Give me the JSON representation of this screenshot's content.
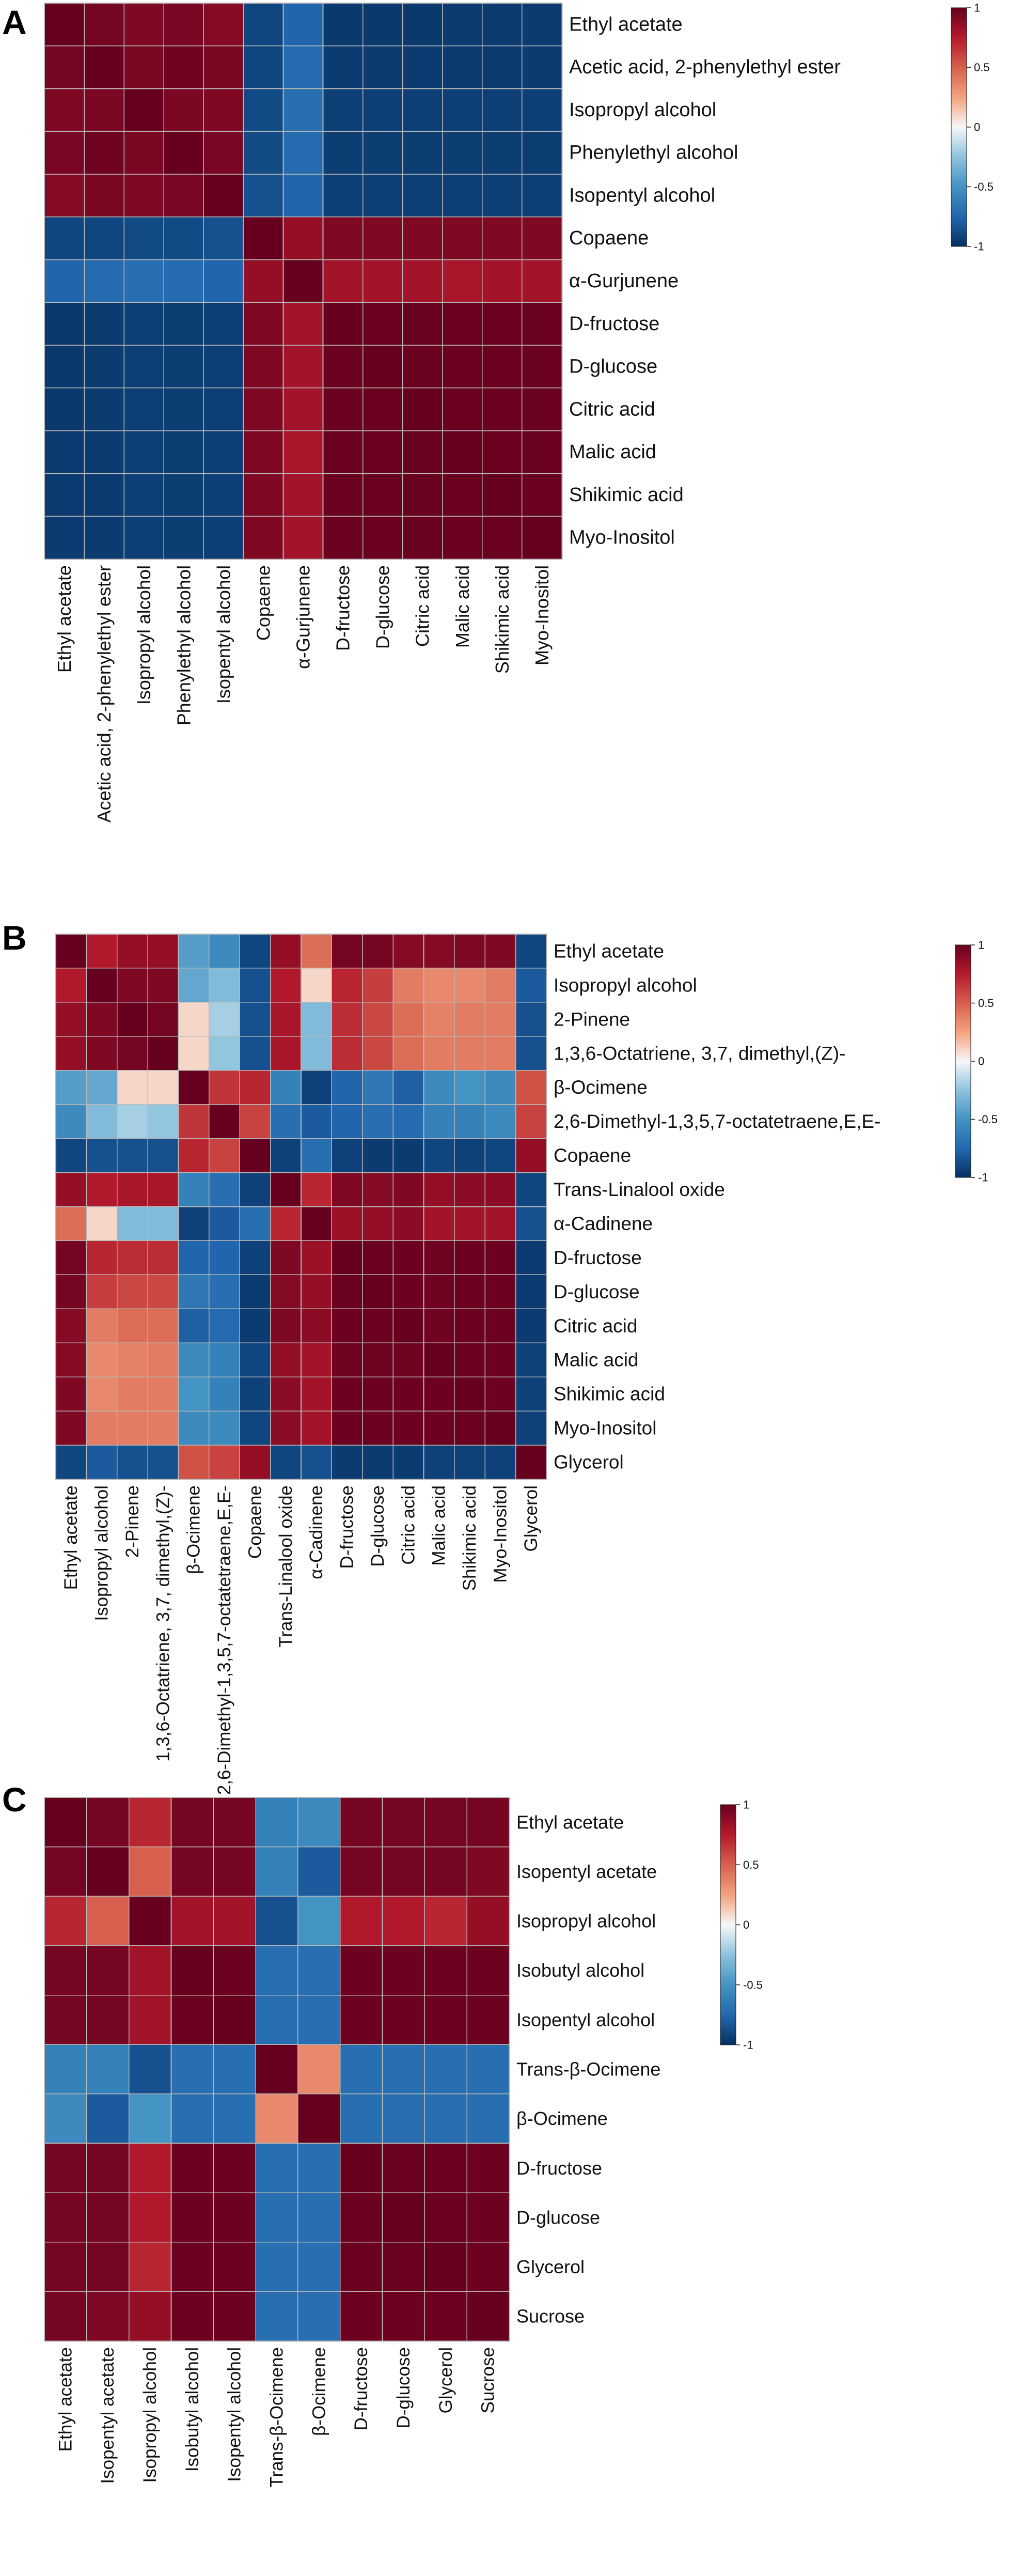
{
  "figure": {
    "colorscale": {
      "low": "#053061",
      "mid": "#f7f7f7",
      "high": "#67001f",
      "range": [
        -1,
        1
      ]
    }
  },
  "chart_data": [
    {
      "type": "heatmap",
      "panel_label": "A",
      "title": "",
      "labels": [
        "Ethyl acetate",
        "Acetic acid, 2-phenylethyl ester",
        "Isopropyl alcohol",
        "Phenylethyl alcohol",
        "Isopentyl alcohol",
        "Copaene",
        "α-Gurjunene",
        "D-fructose",
        "D-glucose",
        "Citric acid",
        "Malic acid",
        "Shikimic acid",
        "Myo-Inositol"
      ],
      "values": [
        [
          1.0,
          0.95,
          0.92,
          0.94,
          0.9,
          -0.9,
          -0.75,
          -0.96,
          -0.96,
          -0.96,
          -0.95,
          -0.95,
          -0.95
        ],
        [
          0.95,
          1.0,
          0.93,
          0.97,
          0.93,
          -0.9,
          -0.72,
          -0.95,
          -0.95,
          -0.95,
          -0.95,
          -0.95,
          -0.95
        ],
        [
          0.92,
          0.93,
          1.0,
          0.93,
          0.92,
          -0.88,
          -0.7,
          -0.93,
          -0.93,
          -0.93,
          -0.93,
          -0.93,
          -0.93
        ],
        [
          0.94,
          0.97,
          0.93,
          1.0,
          0.94,
          -0.88,
          -0.72,
          -0.94,
          -0.94,
          -0.94,
          -0.94,
          -0.94,
          -0.94
        ],
        [
          0.9,
          0.93,
          0.92,
          0.94,
          1.0,
          -0.85,
          -0.75,
          -0.93,
          -0.93,
          -0.93,
          -0.93,
          -0.93,
          -0.93
        ],
        [
          -0.9,
          -0.9,
          -0.88,
          -0.88,
          -0.85,
          1.0,
          0.85,
          0.92,
          0.92,
          0.92,
          0.92,
          0.92,
          0.92
        ],
        [
          -0.75,
          -0.72,
          -0.7,
          -0.72,
          -0.75,
          0.85,
          1.0,
          0.8,
          0.8,
          0.8,
          0.78,
          0.8,
          0.8
        ],
        [
          -0.96,
          -0.95,
          -0.93,
          -0.94,
          -0.93,
          0.92,
          0.8,
          1.0,
          0.99,
          0.99,
          0.99,
          0.99,
          0.99
        ],
        [
          -0.96,
          -0.95,
          -0.93,
          -0.94,
          -0.93,
          0.92,
          0.8,
          0.99,
          1.0,
          0.99,
          0.99,
          0.99,
          0.99
        ],
        [
          -0.96,
          -0.95,
          -0.93,
          -0.94,
          -0.93,
          0.92,
          0.8,
          0.99,
          0.99,
          1.0,
          0.99,
          0.99,
          0.99
        ],
        [
          -0.95,
          -0.95,
          -0.93,
          -0.94,
          -0.93,
          0.92,
          0.78,
          0.99,
          0.99,
          0.99,
          1.0,
          0.99,
          0.99
        ],
        [
          -0.95,
          -0.95,
          -0.93,
          -0.94,
          -0.93,
          0.92,
          0.8,
          0.99,
          0.99,
          0.99,
          0.99,
          1.0,
          0.99
        ],
        [
          -0.95,
          -0.95,
          -0.93,
          -0.94,
          -0.93,
          0.92,
          0.8,
          0.99,
          0.99,
          0.99,
          0.99,
          0.99,
          1.0
        ]
      ],
      "colorbar": {
        "ticks": [
          "1",
          "0.5",
          "0",
          "-0.5",
          "-1"
        ],
        "range": [
          -1,
          1
        ]
      }
    },
    {
      "type": "heatmap",
      "panel_label": "B",
      "title": "",
      "labels": [
        "Ethyl acetate",
        "Isopropyl alcohol",
        "2-Pinene",
        "1,3,6-Octatriene, 3,7, dimethyl,(Z)-",
        "β-Ocimene",
        "2,6-Dimethyl-1,3,5,7-octatetraene,E,E-",
        "Copaene",
        "Trans-Linalool oxide",
        "α-Cadinene",
        "D-fructose",
        "D-glucose",
        "Citric acid",
        "Malic acid",
        "Shikimic acid",
        "Myo-Inositol",
        "Glycerol"
      ],
      "values": [
        [
          1.0,
          0.75,
          0.85,
          0.85,
          -0.45,
          -0.55,
          -0.9,
          0.85,
          0.45,
          0.95,
          0.95,
          0.9,
          0.9,
          0.92,
          0.92,
          -0.9
        ],
        [
          0.75,
          1.0,
          0.92,
          0.92,
          -0.4,
          -0.3,
          -0.85,
          0.75,
          0.1,
          0.7,
          0.62,
          0.4,
          0.35,
          0.35,
          0.4,
          -0.8
        ],
        [
          0.85,
          0.92,
          1.0,
          0.95,
          0.1,
          -0.2,
          -0.85,
          0.78,
          -0.3,
          0.68,
          0.58,
          0.45,
          0.38,
          0.4,
          0.4,
          -0.85
        ],
        [
          0.85,
          0.92,
          0.95,
          1.0,
          0.1,
          -0.25,
          -0.85,
          0.78,
          -0.3,
          0.68,
          0.58,
          0.45,
          0.4,
          0.4,
          0.4,
          -0.85
        ],
        [
          -0.45,
          -0.4,
          0.1,
          0.1,
          1.0,
          0.65,
          0.7,
          -0.6,
          -0.92,
          -0.75,
          -0.65,
          -0.78,
          -0.55,
          -0.5,
          -0.55,
          0.55
        ],
        [
          -0.55,
          -0.3,
          -0.2,
          -0.25,
          0.65,
          1.0,
          0.6,
          -0.7,
          -0.8,
          -0.75,
          -0.7,
          -0.72,
          -0.6,
          -0.6,
          -0.55,
          0.6
        ],
        [
          -0.9,
          -0.85,
          -0.85,
          -0.85,
          0.7,
          0.6,
          1.0,
          -0.92,
          -0.7,
          -0.92,
          -0.95,
          -0.95,
          -0.9,
          -0.92,
          -0.9,
          0.85
        ],
        [
          0.85,
          0.75,
          0.78,
          0.78,
          -0.6,
          -0.7,
          -0.92,
          1.0,
          0.7,
          0.92,
          0.9,
          0.92,
          0.85,
          0.88,
          0.88,
          -0.9
        ],
        [
          0.45,
          0.1,
          -0.3,
          -0.3,
          -0.92,
          -0.8,
          -0.7,
          0.7,
          1.0,
          0.82,
          0.85,
          0.88,
          0.8,
          0.8,
          0.8,
          -0.85
        ],
        [
          0.95,
          0.7,
          0.68,
          0.68,
          -0.75,
          -0.75,
          -0.92,
          0.92,
          0.82,
          1.0,
          0.99,
          0.98,
          0.97,
          0.98,
          0.98,
          -0.95
        ],
        [
          0.95,
          0.62,
          0.58,
          0.58,
          -0.65,
          -0.7,
          -0.95,
          0.9,
          0.85,
          0.99,
          1.0,
          0.98,
          0.97,
          0.98,
          0.98,
          -0.95
        ],
        [
          0.9,
          0.4,
          0.45,
          0.45,
          -0.78,
          -0.72,
          -0.95,
          0.92,
          0.88,
          0.98,
          0.98,
          1.0,
          0.97,
          0.98,
          0.98,
          -0.95
        ],
        [
          0.9,
          0.35,
          0.38,
          0.4,
          -0.55,
          -0.6,
          -0.9,
          0.85,
          0.8,
          0.97,
          0.97,
          0.97,
          1.0,
          0.98,
          0.98,
          -0.92
        ],
        [
          0.92,
          0.35,
          0.4,
          0.4,
          -0.5,
          -0.6,
          -0.92,
          0.88,
          0.8,
          0.98,
          0.98,
          0.98,
          0.98,
          1.0,
          0.98,
          -0.92
        ],
        [
          0.92,
          0.4,
          0.4,
          0.4,
          -0.55,
          -0.55,
          -0.9,
          0.88,
          0.8,
          0.98,
          0.98,
          0.98,
          0.98,
          0.98,
          1.0,
          -0.92
        ],
        [
          -0.9,
          -0.8,
          -0.85,
          -0.85,
          0.55,
          0.6,
          0.85,
          -0.9,
          -0.85,
          -0.95,
          -0.95,
          -0.95,
          -0.92,
          -0.92,
          -0.92,
          1.0
        ]
      ],
      "colorbar": {
        "ticks": [
          "1",
          "0.5",
          "0",
          "-0.5",
          "-1"
        ],
        "range": [
          -1,
          1
        ]
      }
    },
    {
      "type": "heatmap",
      "panel_label": "C",
      "title": "",
      "labels": [
        "Ethyl acetate",
        "Isopentyl acetate",
        "Isopropyl alcohol",
        "Isobutyl alcohol",
        "Isopentyl alcohol",
        "Trans-β-Ocimene",
        "β-Ocimene",
        "D-fructose",
        "D-glucose",
        "Glycerol",
        "Sucrose"
      ],
      "values": [
        [
          1.0,
          0.95,
          0.7,
          0.95,
          0.95,
          -0.6,
          -0.55,
          0.95,
          0.95,
          0.95,
          0.95
        ],
        [
          0.95,
          1.0,
          0.5,
          0.95,
          0.95,
          -0.6,
          -0.8,
          0.95,
          0.95,
          0.95,
          0.92
        ],
        [
          0.7,
          0.5,
          1.0,
          0.8,
          0.8,
          -0.85,
          -0.5,
          0.75,
          0.75,
          0.7,
          0.85
        ],
        [
          0.95,
          0.95,
          0.8,
          1.0,
          0.99,
          -0.7,
          -0.7,
          0.98,
          0.98,
          0.98,
          0.98
        ],
        [
          0.95,
          0.95,
          0.8,
          0.99,
          1.0,
          -0.7,
          -0.7,
          0.98,
          0.98,
          0.98,
          0.98
        ],
        [
          -0.6,
          -0.6,
          -0.85,
          -0.7,
          -0.7,
          1.0,
          0.35,
          -0.7,
          -0.7,
          -0.7,
          -0.7
        ],
        [
          -0.55,
          -0.8,
          -0.5,
          -0.7,
          -0.7,
          0.35,
          1.0,
          -0.7,
          -0.7,
          -0.7,
          -0.7
        ],
        [
          0.95,
          0.95,
          0.75,
          0.98,
          0.98,
          -0.7,
          -0.7,
          1.0,
          0.99,
          0.99,
          0.98
        ],
        [
          0.95,
          0.95,
          0.75,
          0.98,
          0.98,
          -0.7,
          -0.7,
          0.99,
          1.0,
          0.99,
          0.98
        ],
        [
          0.95,
          0.95,
          0.7,
          0.98,
          0.98,
          -0.7,
          -0.7,
          0.99,
          0.99,
          1.0,
          0.98
        ],
        [
          0.95,
          0.92,
          0.85,
          0.98,
          0.98,
          -0.7,
          -0.7,
          0.98,
          0.98,
          0.98,
          1.0
        ]
      ],
      "colorbar": {
        "ticks": [
          "1",
          "0.5",
          "0",
          "-0.5",
          "-1"
        ],
        "range": [
          -1,
          1
        ]
      }
    }
  ]
}
